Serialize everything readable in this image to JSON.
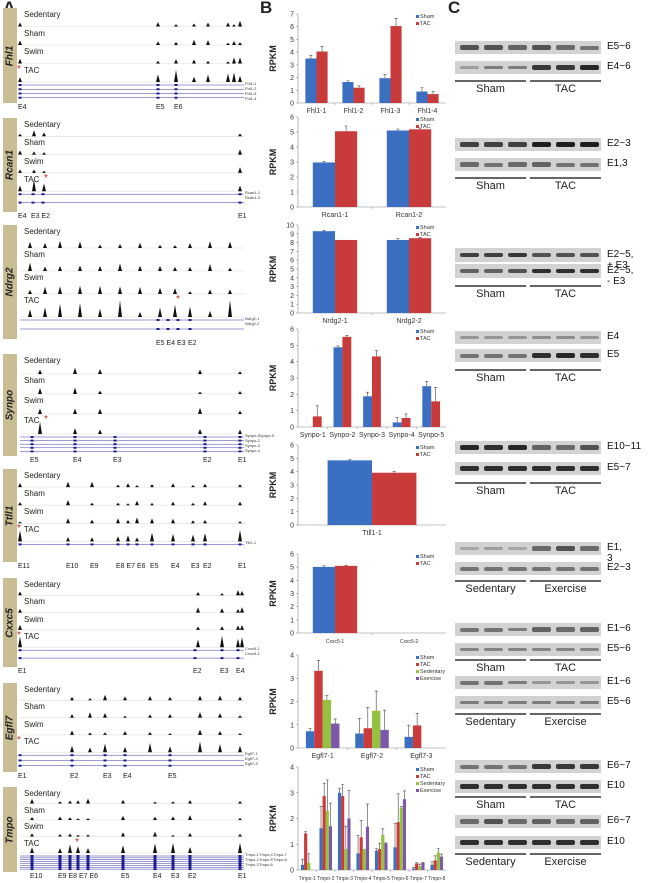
{
  "panels": {
    "a": "A",
    "b": "B",
    "c": "C"
  },
  "colors": {
    "sham": "#3a6fc2",
    "tac": "#c93a3a",
    "sedentary": "#95c040",
    "exercise": "#7b58a8",
    "gene_bar": "#c9bd93",
    "star": "#c0272d"
  },
  "tracks": [
    "Sedentary",
    "Sham",
    "Swim",
    "TAC"
  ],
  "genes": [
    {
      "name": "Fhl1",
      "exons": [
        "E4",
        "E5",
        "E6"
      ],
      "transcripts": [
        "Fhl1-1",
        "Fhl1-2",
        "Fhl1-3",
        "Fhl1-4"
      ]
    },
    {
      "name": "Rcan1",
      "exons": [
        "E4",
        "E3",
        "E2",
        "E1"
      ],
      "transcripts": [
        "Rcan1-1",
        "Rcan1-2"
      ]
    },
    {
      "name": "Ndrg2",
      "exons": [
        "E5",
        "E4",
        "E3",
        "E2"
      ],
      "transcripts": [
        "Ndrg2-1",
        "Ndrg2-2"
      ]
    },
    {
      "name": "Synpo",
      "exons": [
        "E5",
        "E4",
        "E3",
        "E2",
        "E1"
      ],
      "transcripts": [
        "Synpo-1",
        "Synpo-2",
        "Synpo-3",
        "Synpo-4",
        "Synpo-5"
      ]
    },
    {
      "name": "Ttll1",
      "exons": [
        "E11",
        "E10",
        "E9",
        "E8",
        "E7",
        "E6",
        "E5",
        "E4",
        "E3",
        "E2",
        "E1"
      ],
      "transcripts": [
        "Ttll1-1"
      ]
    },
    {
      "name": "Cxxc5",
      "exons": [
        "E1",
        "E2",
        "E3",
        "E4"
      ],
      "transcripts": [
        "Cxxc5-1",
        "Cxxc5-2"
      ]
    },
    {
      "name": "Egfl7",
      "exons": [
        "E1",
        "E2",
        "E3",
        "E4",
        "E5"
      ],
      "transcripts": [
        "Egfl7-1",
        "Egfl7-2",
        "Egfl7-3"
      ]
    },
    {
      "name": "Tmpo",
      "exons": [
        "E10",
        "E9",
        "E8",
        "E7",
        "E6",
        "E5",
        "E4",
        "E3",
        "E2",
        "E1"
      ],
      "transcripts": [
        "Tmpo-1",
        "Tmpo-2",
        "Tmpo-3",
        "Tmpo-4",
        "Tmpo-5",
        "Tmpo-6",
        "Tmpo-7",
        "Tmpo-8"
      ]
    }
  ],
  "chart_data": [
    {
      "type": "bar",
      "ylabel": "RPKM",
      "ylim": [
        0,
        7
      ],
      "yticks": [
        0,
        1,
        2,
        3,
        4,
        5,
        6,
        7
      ],
      "categories": [
        "Fhl1-1",
        "Fhl1-2",
        "Fhl1-3",
        "Fhl1-4"
      ],
      "legend_position": "top-right",
      "series": [
        {
          "name": "Sham",
          "values": [
            3.5,
            1.65,
            1.95,
            0.9
          ],
          "errors": [
            0.25,
            0.1,
            0.3,
            0.3
          ]
        },
        {
          "name": "TAC",
          "values": [
            4.05,
            1.2,
            6.05,
            0.7
          ],
          "errors": [
            0.4,
            0.15,
            0.6,
            0.2
          ]
        }
      ]
    },
    {
      "type": "bar",
      "ylabel": "RPKM",
      "ylim": [
        0,
        6
      ],
      "yticks": [
        0,
        1,
        2,
        3,
        4,
        5,
        6
      ],
      "categories": [
        "Rcan1-1",
        "Rcan1-2"
      ],
      "legend_position": "top-right",
      "series": [
        {
          "name": "Sham",
          "values": [
            2.97,
            5.1
          ],
          "errors": [
            0.05,
            0.1
          ]
        },
        {
          "name": "TAC",
          "values": [
            5.05,
            5.18
          ],
          "errors": [
            0.35,
            0.08
          ]
        }
      ]
    },
    {
      "type": "bar",
      "ylabel": "RPKM",
      "ylim": [
        0,
        10
      ],
      "yticks": [
        0,
        1,
        2,
        3,
        4,
        5,
        6,
        7,
        8,
        9,
        10
      ],
      "categories": [
        "Nrdg2-1",
        "Nrdg2-2"
      ],
      "legend_position": "top-right",
      "series": [
        {
          "name": "Sham",
          "values": [
            9.3,
            8.3
          ],
          "errors": [
            0.1,
            0.15
          ]
        },
        {
          "name": "TAC",
          "values": [
            8.3,
            8.5
          ],
          "errors": [
            0,
            0.1
          ]
        }
      ]
    },
    {
      "type": "bar",
      "ylabel": "RPKM",
      "ylim": [
        0,
        6
      ],
      "yticks": [
        0,
        1,
        2,
        3,
        4,
        5,
        6
      ],
      "categories": [
        "Synpo-1",
        "Synpo-2",
        "Synpo-3",
        "Synpo-4",
        "Synpo-5"
      ],
      "legend_position": "top-right",
      "series": [
        {
          "name": "Sham",
          "values": [
            0,
            4.88,
            1.88,
            0.28,
            2.5
          ],
          "errors": [
            0,
            0.08,
            0.25,
            0.3,
            0.3
          ]
        },
        {
          "name": "TAC",
          "values": [
            0.65,
            5.52,
            4.32,
            0.55,
            1.57
          ],
          "errors": [
            0.65,
            0.08,
            0.35,
            0.25,
            0.85
          ]
        }
      ]
    },
    {
      "type": "bar",
      "ylabel": "RPKM",
      "ylim": [
        0,
        6
      ],
      "yticks": [
        0,
        1,
        2,
        3,
        4,
        5,
        6
      ],
      "categories": [
        "Ttll1-1"
      ],
      "legend_position": "top-right",
      "series": [
        {
          "name": "Sham",
          "values": [
            4.85
          ],
          "errors": [
            0.05
          ]
        },
        {
          "name": "TAC",
          "values": [
            3.92
          ],
          "errors": [
            0.1
          ]
        }
      ]
    },
    {
      "type": "bar",
      "ylabel": "RPKM",
      "ylim": [
        0,
        6
      ],
      "yticks": [
        0,
        1,
        2,
        3,
        4,
        5,
        6
      ],
      "categories": [
        "Cxxc5-1",
        "Cxxc5-2"
      ],
      "legend_position": "top-right",
      "series": [
        {
          "name": "Sham",
          "values": [
            5.02,
            0
          ],
          "errors": [
            0.08,
            0
          ]
        },
        {
          "name": "TAC",
          "values": [
            5.1,
            0
          ],
          "errors": [
            0.05,
            0
          ]
        }
      ]
    },
    {
      "type": "bar",
      "ylabel": "RPKM",
      "ylim": [
        0,
        4
      ],
      "yticks": [
        0,
        1,
        2,
        3,
        4
      ],
      "categories": [
        "Egfl7-1",
        "Egfl7-2",
        "Egfl7-3"
      ],
      "legend_position": "top-right",
      "series": [
        {
          "name": "Sham",
          "values": [
            0.72,
            0.62,
            0.48
          ],
          "errors": [
            0.13,
            0.65,
            0.5
          ]
        },
        {
          "name": "TAC",
          "values": [
            3.32,
            0.85,
            0.97
          ],
          "errors": [
            0.45,
            0.9,
            0.52
          ]
        },
        {
          "name": "Sedentary",
          "values": [
            2.07,
            1.6,
            0
          ],
          "errors": [
            0.18,
            0.85,
            0
          ]
        },
        {
          "name": "Exercise",
          "values": [
            1.05,
            0.78,
            0
          ],
          "errors": [
            0.2,
            0.85,
            0
          ]
        }
      ]
    },
    {
      "type": "bar",
      "ylabel": "RPKM",
      "ylim": [
        0,
        4
      ],
      "yticks": [
        0,
        1,
        2,
        3,
        4
      ],
      "categories": [
        "Tmpo-1",
        "Tmpo-2",
        "Tmpo-3",
        "Tmpo-4",
        "Tmpo-5",
        "Tmpo-6",
        "Tmpo-7",
        "Tmpo-8"
      ],
      "legend_position": "top-right",
      "series": [
        {
          "name": "Sham",
          "values": [
            0.2,
            1.62,
            3.0,
            0.65,
            0.75,
            0.88,
            0.05,
            0.2
          ],
          "errors": [
            0.22,
            0.85,
            0.18,
            0.7,
            0.08,
            0.92,
            0.05,
            0.12
          ]
        },
        {
          "name": "TAC",
          "values": [
            1.42,
            2.87,
            2.87,
            1.27,
            0.82,
            1.86,
            0.25,
            0.37
          ],
          "errors": [
            0.08,
            0.5,
            0.45,
            0.65,
            0.22,
            1.1,
            0.03,
            0.18
          ]
        },
        {
          "name": "Sedentary",
          "values": [
            0.28,
            2.3,
            0.82,
            0.82,
            1.37,
            2.42,
            0.15,
            0.68
          ],
          "errors": [
            0.35,
            1.2,
            0.88,
            0,
            0.23,
            0.05,
            0.08,
            0.15
          ]
        },
        {
          "name": "Exercise",
          "values": [
            0,
            1.7,
            2.0,
            1.68,
            1.03,
            2.75,
            0.28,
            0.52
          ],
          "errors": [
            0,
            0.9,
            1.08,
            0.88,
            0.02,
            0.32,
            0.02,
            0.1
          ]
        }
      ]
    }
  ],
  "gels": [
    {
      "rows": [
        {
          "label": "E5~6",
          "bands": [
            0.7,
            0.7,
            0.6,
            0.7,
            0.55,
            0.5
          ]
        },
        {
          "label": "E4~6",
          "bands": [
            0.25,
            0.45,
            0.45,
            0.85,
            0.85,
            0.95
          ]
        }
      ],
      "groups": [
        "Sham",
        "TAC"
      ]
    },
    {
      "rows": [
        {
          "label": "E2~3",
          "bands": [
            0.8,
            0.8,
            0.8,
            1,
            1,
            1
          ]
        },
        {
          "label": "E1,3",
          "bands": [
            0.55,
            0.5,
            0.55,
            0.6,
            0.5,
            0.5
          ]
        }
      ],
      "groups": [
        "Sham",
        "TAC"
      ]
    },
    {
      "rows": [
        {
          "label": "E2~5, + E3",
          "bands": [
            0.8,
            0.8,
            0.85,
            0.7,
            0.7,
            0.7
          ]
        },
        {
          "label": "E2~5, - E3",
          "bands": [
            0.6,
            0.6,
            0.7,
            0.9,
            0.9,
            0.9
          ]
        }
      ],
      "groups": [
        "Sham",
        "TAC"
      ]
    },
    {
      "rows": [
        {
          "label": "E4",
          "bands": [
            0.3,
            0.3,
            0.3,
            0.35,
            0.35,
            0.3
          ]
        },
        {
          "label": "E5",
          "bands": [
            0.5,
            0.5,
            0.5,
            0.9,
            0.95,
            0.9
          ]
        }
      ],
      "groups": [
        "Sham",
        "TAC"
      ]
    },
    {
      "rows": [
        {
          "label": "E10~11",
          "bands": [
            0.95,
            0.9,
            0.95,
            0.6,
            0.55,
            0.7
          ]
        },
        {
          "label": "E5~7",
          "bands": [
            0.9,
            0.9,
            0.9,
            0.9,
            0.9,
            0.9
          ]
        }
      ],
      "groups": [
        "Sham",
        "TAC"
      ]
    },
    {
      "rows": [
        {
          "label": "E1, 3",
          "bands": [
            0.2,
            0.25,
            0.2,
            0.55,
            0.7,
            0.55
          ]
        },
        {
          "label": "E2~3",
          "bands": [
            0.5,
            0.5,
            0.5,
            0.5,
            0.5,
            0.5
          ]
        }
      ],
      "groups": [
        "Sedentary",
        "Exercise"
      ]
    },
    {
      "rows": [
        {
          "label": "E1~6",
          "bands": [
            0.5,
            0.5,
            0.45,
            0.6,
            0.55,
            0.6
          ]
        },
        {
          "label": "E5~6",
          "bands": [
            0.4,
            0.4,
            0.4,
            0.4,
            0.4,
            0.4
          ]
        }
      ],
      "groups": [
        "Sham",
        "TAC"
      ]
    },
    {
      "rows": [
        {
          "label": "E1~6",
          "bands": [
            0.5,
            0.5,
            0.45,
            0.3,
            0.3,
            0.3
          ]
        },
        {
          "label": "E5~6",
          "bands": [
            0.45,
            0.45,
            0.45,
            0.45,
            0.45,
            0.45
          ]
        }
      ],
      "groups": [
        "Sedentary",
        "Exercise"
      ]
    },
    {
      "rows": [
        {
          "label": "E6~7",
          "bands": [
            0.5,
            0.5,
            0.5,
            0.85,
            0.85,
            0.85
          ]
        },
        {
          "label": "E10",
          "bands": [
            0.9,
            0.9,
            0.9,
            0.9,
            0.9,
            0.9
          ]
        }
      ],
      "groups": [
        "Sham",
        "TAC"
      ]
    },
    {
      "rows": [
        {
          "label": "E6~7",
          "bands": [
            0.55,
            0.7,
            0.55,
            0.6,
            0.55,
            0.6
          ]
        },
        {
          "label": "E10",
          "bands": [
            0.9,
            0.9,
            0.9,
            0.9,
            0.9,
            0.9
          ]
        }
      ],
      "groups": [
        "Sedentary",
        "Exercise"
      ]
    }
  ]
}
